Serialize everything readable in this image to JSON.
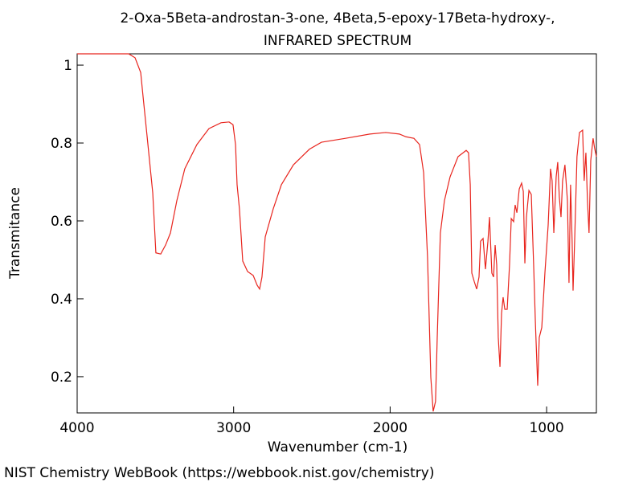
{
  "chart_data": {
    "type": "line",
    "title": "2-Oxa-5Beta-androstan-3-one, 4Beta,5-epoxy-17Beta-hydroxy-,",
    "subtitle": "INFRARED SPECTRUM",
    "x_label": "Wavenumber (cm-1)",
    "y_label": "Transmitance",
    "xlim": [
      4000,
      682
    ],
    "ylim": [
      0.107,
      1.029
    ],
    "xticks": [
      4000,
      3000,
      2000,
      1000
    ],
    "yticks": [
      0.2,
      0.4,
      0.6,
      0.8,
      1
    ],
    "series": [
      {
        "color": "#e8251e",
        "x": [
          4000,
          3671,
          3630,
          3594,
          3579,
          3553,
          3517,
          3497,
          3466,
          3435,
          3404,
          3363,
          3312,
          3235,
          3158,
          3081,
          3029,
          3004,
          2988,
          2978,
          2963,
          2942,
          2911,
          2875,
          2850,
          2834,
          2819,
          2798,
          2747,
          2695,
          2618,
          2516,
          2439,
          2285,
          2130,
          2028,
          1941,
          1899,
          1848,
          1812,
          1786,
          1761,
          1740,
          1725,
          1710,
          1699,
          1679,
          1653,
          1617,
          1566,
          1514,
          1499,
          1488,
          1478,
          1463,
          1447,
          1432,
          1422,
          1406,
          1391,
          1375,
          1365,
          1350,
          1339,
          1329,
          1319,
          1309,
          1298,
          1288,
          1278,
          1267,
          1252,
          1237,
          1226,
          1211,
          1201,
          1190,
          1175,
          1160,
          1149,
          1139,
          1129,
          1113,
          1098,
          1083,
          1072,
          1057,
          1047,
          1031,
          1011,
          990,
          975,
          965,
          954,
          939,
          929,
          919,
          908,
          898,
          883,
          867,
          857,
          847,
          837,
          831,
          821,
          806,
          790,
          770,
          760,
          749,
          739,
          729,
          718,
          703,
          693,
          682
        ],
        "values": [
          1.029,
          1.029,
          1.019,
          0.981,
          0.92,
          0.817,
          0.672,
          0.518,
          0.515,
          0.538,
          0.569,
          0.652,
          0.734,
          0.796,
          0.837,
          0.852,
          0.854,
          0.847,
          0.796,
          0.693,
          0.631,
          0.497,
          0.47,
          0.46,
          0.435,
          0.425,
          0.456,
          0.559,
          0.631,
          0.693,
          0.744,
          0.784,
          0.802,
          0.812,
          0.823,
          0.827,
          0.823,
          0.816,
          0.812,
          0.796,
          0.724,
          0.507,
          0.198,
          0.111,
          0.136,
          0.301,
          0.569,
          0.652,
          0.713,
          0.765,
          0.781,
          0.775,
          0.693,
          0.466,
          0.445,
          0.425,
          0.456,
          0.548,
          0.555,
          0.476,
          0.548,
          0.61,
          0.466,
          0.456,
          0.538,
          0.487,
          0.301,
          0.225,
          0.363,
          0.404,
          0.373,
          0.373,
          0.487,
          0.606,
          0.598,
          0.641,
          0.621,
          0.682,
          0.697,
          0.676,
          0.491,
          0.61,
          0.678,
          0.668,
          0.487,
          0.342,
          0.177,
          0.301,
          0.326,
          0.466,
          0.59,
          0.734,
          0.703,
          0.569,
          0.713,
          0.751,
          0.662,
          0.61,
          0.703,
          0.744,
          0.652,
          0.441,
          0.693,
          0.548,
          0.421,
          0.548,
          0.765,
          0.827,
          0.833,
          0.703,
          0.775,
          0.652,
          0.569,
          0.755,
          0.812,
          0.786,
          0.765
        ]
      }
    ]
  },
  "footer": "NIST Chemistry WebBook (https://webbook.nist.gov/chemistry)"
}
